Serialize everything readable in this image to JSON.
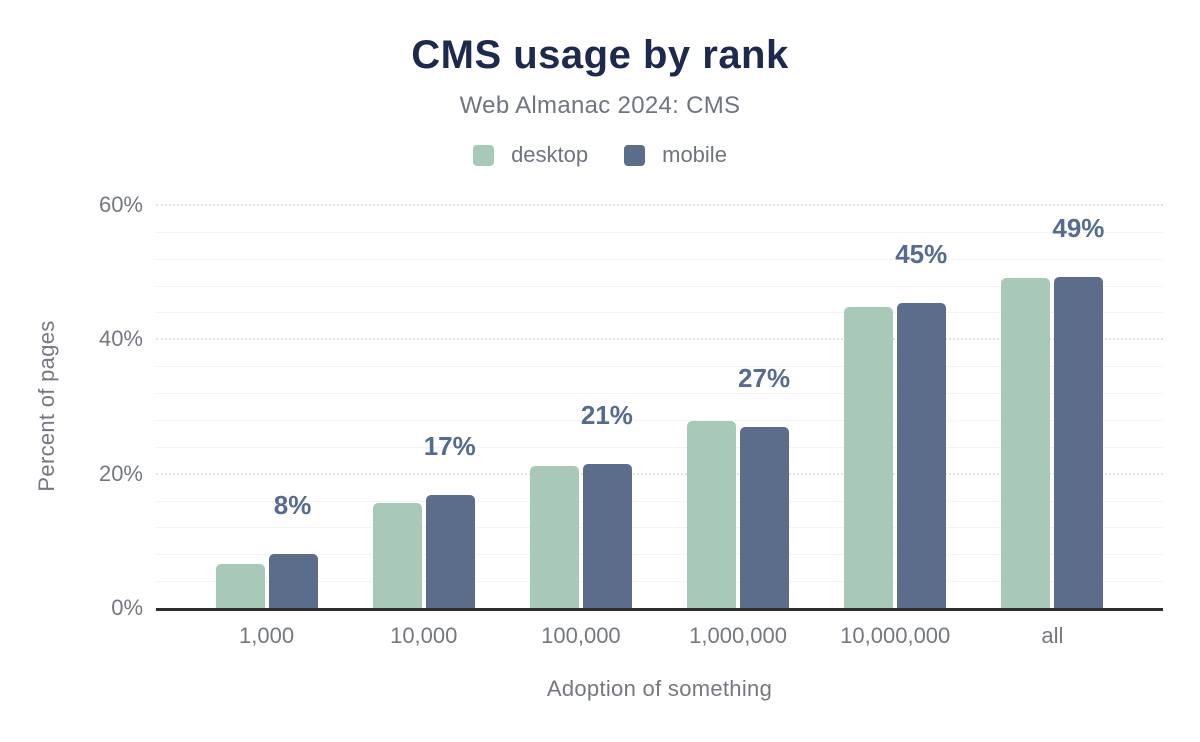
{
  "chart_data": {
    "type": "bar",
    "title": "CMS usage by rank",
    "subtitle": "Web Almanac 2024: CMS",
    "xlabel": "Adoption of something",
    "ylabel": "Percent of pages",
    "categories": [
      "1,000",
      "10,000",
      "100,000",
      "1,000,000",
      "10,000,000",
      "all"
    ],
    "series": [
      {
        "name": "desktop",
        "color": "#a9c9b8",
        "values": [
          6.5,
          15.6,
          21.2,
          27.8,
          44.8,
          49.2
        ]
      },
      {
        "name": "mobile",
        "color": "#5c6d8c",
        "values": [
          8.0,
          16.9,
          21.5,
          27.0,
          45.4,
          49.3
        ]
      }
    ],
    "bar_labels": [
      "8%",
      "17%",
      "21%",
      "27%",
      "45%",
      "49%"
    ],
    "bar_label_series": "mobile",
    "ylim": [
      0,
      60
    ],
    "yticks": [
      {
        "value": 0,
        "label": "0%"
      },
      {
        "value": 20,
        "label": "20%"
      },
      {
        "value": 40,
        "label": "40%"
      },
      {
        "value": 60,
        "label": "60%"
      }
    ],
    "grid": {
      "minor_step": 4,
      "major_ticks": [
        20,
        40,
        60
      ],
      "on": true
    },
    "legend_position": "top",
    "colors": {
      "title": "#1e2a4d",
      "subtitle": "#6f7580",
      "axis_text": "#74787f",
      "bar_label": "#566b90",
      "axis_line": "#2d2d2d"
    }
  }
}
